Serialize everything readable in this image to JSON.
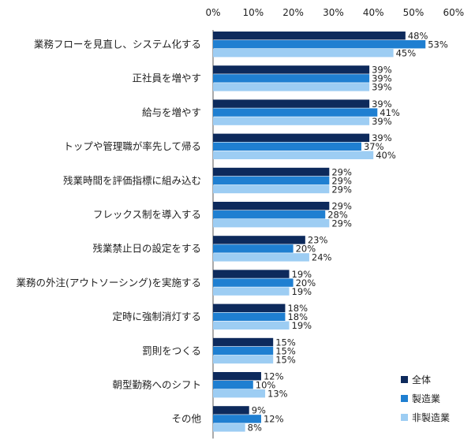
{
  "chart_data": {
    "type": "bar",
    "orientation": "horizontal",
    "title": "",
    "xlabel": "",
    "ylabel": "",
    "xlim": [
      0,
      60
    ],
    "x_ticks": [
      "0%",
      "10%",
      "20%",
      "30%",
      "40%",
      "50%",
      "60%"
    ],
    "x_tick_values": [
      0,
      10,
      20,
      30,
      40,
      50,
      60
    ],
    "grid": false,
    "legend_position": "bottom-right",
    "categories": [
      "業務フローを見直し、システム化する",
      "正社員を増やす",
      "給与を増やす",
      "トップや管理職が率先して帰る",
      "残業時間を評価指標に組み込む",
      "フレックス制を導入する",
      "残業禁止日の設定をする",
      "業務の外注(アウトソーシング)を実施する",
      "定時に強制消灯する",
      "罰則をつくる",
      "朝型勤務へのシフト",
      "その他"
    ],
    "series": [
      {
        "name": "全体",
        "color": "#0d2a5c",
        "values": [
          48,
          39,
          39,
          39,
          29,
          29,
          23,
          19,
          18,
          15,
          12,
          9
        ]
      },
      {
        "name": "製造業",
        "color": "#1f7fd1",
        "values": [
          53,
          39,
          41,
          37,
          29,
          28,
          20,
          20,
          18,
          15,
          10,
          12
        ]
      },
      {
        "name": "非製造業",
        "color": "#9dcdf3",
        "values": [
          45,
          39,
          39,
          40,
          29,
          29,
          24,
          19,
          19,
          15,
          13,
          8
        ]
      }
    ],
    "value_suffix": "%"
  }
}
